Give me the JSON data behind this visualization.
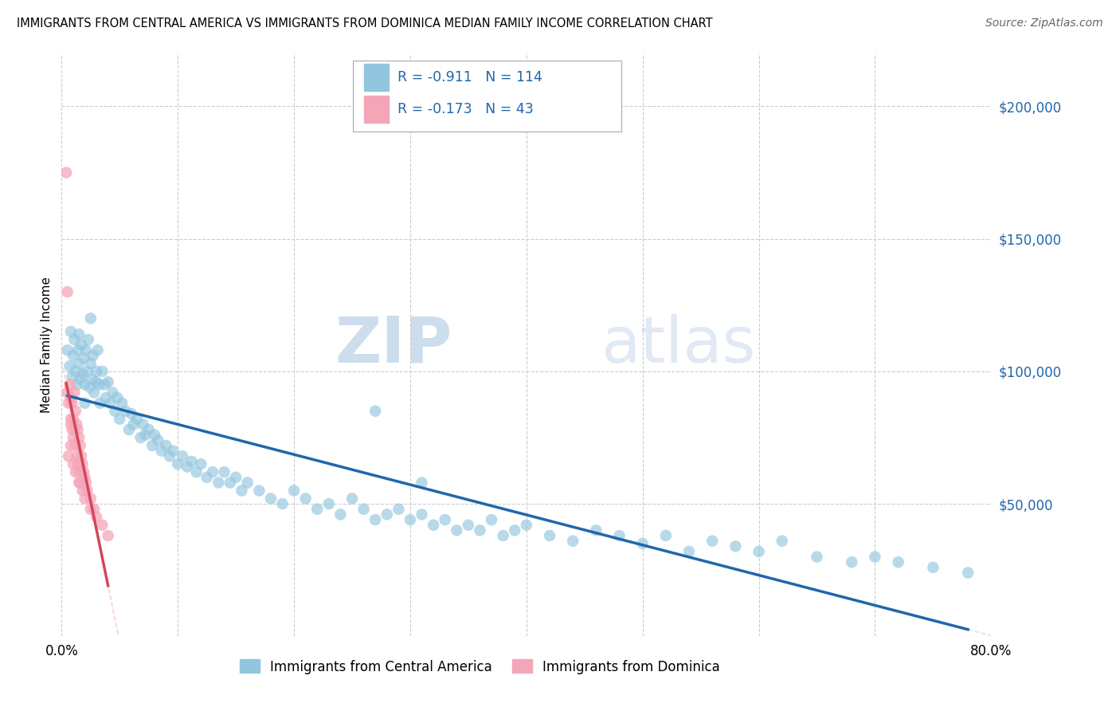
{
  "title": "IMMIGRANTS FROM CENTRAL AMERICA VS IMMIGRANTS FROM DOMINICA MEDIAN FAMILY INCOME CORRELATION CHART",
  "source": "Source: ZipAtlas.com",
  "ylabel": "Median Family Income",
  "yticks": [
    0,
    50000,
    100000,
    150000,
    200000
  ],
  "ytick_labels": [
    "",
    "$50,000",
    "$100,000",
    "$150,000",
    "$200,000"
  ],
  "xlim": [
    0.0,
    0.8
  ],
  "ylim": [
    0,
    220000
  ],
  "legend1_R": "-0.911",
  "legend1_N": "114",
  "legend2_R": "-0.173",
  "legend2_N": "43",
  "legend_label1": "Immigrants from Central America",
  "legend_label2": "Immigrants from Dominica",
  "color_blue": "#92c5de",
  "color_pink": "#f4a6b8",
  "color_blue_line": "#2166ac",
  "color_pink_line": "#d6455a",
  "color_blue_dash": "#d0e9f5",
  "color_pink_dash": "#f9d0da",
  "watermark_zip": "ZIP",
  "watermark_atlas": "atlas",
  "blue_x": [
    0.005,
    0.007,
    0.008,
    0.009,
    0.01,
    0.011,
    0.012,
    0.013,
    0.014,
    0.015,
    0.016,
    0.017,
    0.018,
    0.019,
    0.02,
    0.021,
    0.022,
    0.023,
    0.024,
    0.025,
    0.026,
    0.027,
    0.028,
    0.03,
    0.031,
    0.032,
    0.033,
    0.035,
    0.037,
    0.038,
    0.04,
    0.042,
    0.044,
    0.046,
    0.048,
    0.05,
    0.052,
    0.055,
    0.058,
    0.06,
    0.062,
    0.065,
    0.068,
    0.07,
    0.072,
    0.075,
    0.078,
    0.08,
    0.083,
    0.086,
    0.09,
    0.093,
    0.096,
    0.1,
    0.104,
    0.108,
    0.112,
    0.116,
    0.12,
    0.125,
    0.13,
    0.135,
    0.14,
    0.145,
    0.15,
    0.155,
    0.16,
    0.17,
    0.18,
    0.19,
    0.2,
    0.21,
    0.22,
    0.23,
    0.24,
    0.25,
    0.26,
    0.27,
    0.28,
    0.29,
    0.3,
    0.31,
    0.32,
    0.33,
    0.34,
    0.35,
    0.36,
    0.37,
    0.38,
    0.39,
    0.4,
    0.42,
    0.44,
    0.46,
    0.48,
    0.5,
    0.52,
    0.54,
    0.56,
    0.58,
    0.6,
    0.62,
    0.65,
    0.68,
    0.7,
    0.72,
    0.75,
    0.78,
    0.025,
    0.03,
    0.02,
    0.015,
    0.27,
    0.31
  ],
  "blue_y": [
    108000,
    102000,
    115000,
    98000,
    106000,
    112000,
    100000,
    95000,
    108000,
    103000,
    97000,
    110000,
    99000,
    105000,
    95000,
    108000,
    100000,
    112000,
    94000,
    103000,
    97000,
    106000,
    92000,
    100000,
    108000,
    95000,
    88000,
    100000,
    95000,
    90000,
    96000,
    88000,
    92000,
    85000,
    90000,
    82000,
    88000,
    85000,
    78000,
    84000,
    80000,
    82000,
    75000,
    80000,
    76000,
    78000,
    72000,
    76000,
    74000,
    70000,
    72000,
    68000,
    70000,
    65000,
    68000,
    64000,
    66000,
    62000,
    65000,
    60000,
    62000,
    58000,
    62000,
    58000,
    60000,
    55000,
    58000,
    55000,
    52000,
    50000,
    55000,
    52000,
    48000,
    50000,
    46000,
    52000,
    48000,
    44000,
    46000,
    48000,
    44000,
    46000,
    42000,
    44000,
    40000,
    42000,
    40000,
    44000,
    38000,
    40000,
    42000,
    38000,
    36000,
    40000,
    38000,
    35000,
    38000,
    32000,
    36000,
    34000,
    32000,
    36000,
    30000,
    28000,
    30000,
    28000,
    26000,
    24000,
    120000,
    96000,
    88000,
    114000,
    85000,
    58000
  ],
  "pink_x": [
    0.004,
    0.005,
    0.006,
    0.007,
    0.008,
    0.008,
    0.009,
    0.009,
    0.01,
    0.01,
    0.011,
    0.011,
    0.012,
    0.012,
    0.013,
    0.013,
    0.014,
    0.014,
    0.015,
    0.015,
    0.016,
    0.016,
    0.017,
    0.018,
    0.019,
    0.02,
    0.021,
    0.022,
    0.025,
    0.028,
    0.005,
    0.006,
    0.008,
    0.01,
    0.012,
    0.015,
    0.018,
    0.02,
    0.025,
    0.03,
    0.035,
    0.04,
    0.008
  ],
  "pink_y": [
    175000,
    92000,
    88000,
    95000,
    82000,
    90000,
    78000,
    88000,
    82000,
    75000,
    92000,
    78000,
    85000,
    72000,
    80000,
    68000,
    78000,
    65000,
    75000,
    62000,
    72000,
    58000,
    68000,
    65000,
    62000,
    60000,
    58000,
    55000,
    52000,
    48000,
    130000,
    68000,
    72000,
    65000,
    62000,
    58000,
    55000,
    52000,
    48000,
    45000,
    42000,
    38000,
    80000
  ]
}
